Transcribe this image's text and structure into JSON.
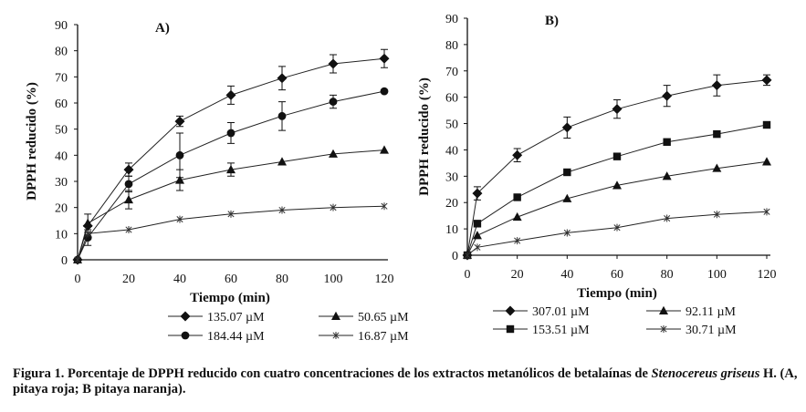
{
  "chart_data": [
    {
      "type": "line",
      "panel_label": "A)",
      "xlabel": "Tiempo (min)",
      "ylabel": "DPPH reducido (%)",
      "xlim": [
        0,
        120
      ],
      "ylim": [
        0,
        90
      ],
      "xticks": [
        "0",
        "20",
        "40",
        "60",
        "80",
        "100",
        "120"
      ],
      "yticks": [
        "0",
        "10",
        "20",
        "30",
        "40",
        "50",
        "60",
        "70",
        "80",
        "90"
      ],
      "series": [
        {
          "name": "135.07 µM",
          "marker": "diamond",
          "x": [
            0,
            4,
            20,
            40,
            60,
            80,
            100,
            120
          ],
          "values": [
            0,
            13,
            34.5,
            53,
            63,
            69.5,
            75,
            77
          ],
          "errors": [
            0,
            0,
            2.5,
            2,
            3.5,
            4.5,
            3.5,
            3.5
          ]
        },
        {
          "name": "184.44 µM",
          "marker": "circle",
          "x": [
            0,
            4,
            20,
            40,
            60,
            80,
            100,
            120
          ],
          "values": [
            0,
            8.5,
            29,
            40,
            48.5,
            55,
            60.5,
            64.5
          ],
          "errors": [
            0,
            3,
            3,
            8.5,
            4,
            5.5,
            2.5,
            0
          ]
        },
        {
          "name": "50.65 µM",
          "marker": "triangle",
          "x": [
            0,
            4,
            20,
            40,
            60,
            80,
            100,
            120
          ],
          "values": [
            0,
            14,
            23,
            30.5,
            34.5,
            37.5,
            40.5,
            42
          ],
          "errors": [
            0,
            3.5,
            3.5,
            4,
            2.5,
            0,
            0,
            0
          ]
        },
        {
          "name": "16.87 µM",
          "marker": "star",
          "x": [
            0,
            4,
            20,
            40,
            60,
            80,
            100,
            120
          ],
          "values": [
            0,
            10,
            11.5,
            15.5,
            17.5,
            19,
            20,
            20.5
          ],
          "errors": [
            0,
            0,
            0,
            0,
            0,
            0,
            0,
            0
          ]
        }
      ],
      "legend_order": [
        "135.07 µM",
        "50.65 µM",
        "184.44 µM",
        "16.87 µM"
      ]
    },
    {
      "type": "line",
      "panel_label": "B)",
      "xlabel": "Tiempo (min)",
      "ylabel": "DPPH reducido (%)",
      "xlim": [
        0,
        120
      ],
      "ylim": [
        0,
        90
      ],
      "xticks": [
        "0",
        "20",
        "40",
        "60",
        "80",
        "100",
        "120"
      ],
      "yticks": [
        "0",
        "10",
        "20",
        "30",
        "40",
        "50",
        "60",
        "70",
        "80",
        "90"
      ],
      "series": [
        {
          "name": "307.01 µM",
          "marker": "diamond",
          "x": [
            0,
            4,
            20,
            40,
            60,
            80,
            100,
            120
          ],
          "values": [
            0,
            23.5,
            38,
            48.5,
            55.5,
            60.5,
            64.5,
            66.5
          ],
          "errors": [
            0,
            2.5,
            2.5,
            4,
            3.5,
            4,
            4,
            2
          ]
        },
        {
          "name": "153.51 µM",
          "marker": "square",
          "x": [
            0,
            4,
            20,
            40,
            60,
            80,
            100,
            120
          ],
          "values": [
            0,
            12,
            22,
            31.5,
            37.5,
            43,
            46,
            49.5
          ],
          "errors": [
            0,
            0,
            0,
            0,
            0,
            0,
            0,
            0
          ]
        },
        {
          "name": "92.11 µM",
          "marker": "triangle",
          "x": [
            0,
            4,
            20,
            40,
            60,
            80,
            100,
            120
          ],
          "values": [
            0,
            7.5,
            14.5,
            21.5,
            26.5,
            30,
            33,
            35.5
          ],
          "errors": [
            0,
            0,
            0,
            0,
            0,
            0,
            0,
            0
          ]
        },
        {
          "name": "30.71 µM",
          "marker": "star",
          "x": [
            0,
            4,
            20,
            40,
            60,
            80,
            100,
            120
          ],
          "values": [
            0,
            3,
            5.5,
            8.5,
            10.5,
            14,
            15.5,
            16.5
          ],
          "errors": [
            0,
            0,
            0,
            0,
            0,
            0,
            0,
            0
          ]
        }
      ],
      "legend_order": [
        "307.01 µM",
        "92.11 µM",
        "153.51 µM",
        "30.71 µM"
      ]
    }
  ],
  "caption": {
    "prefix": "Figura 1.",
    "text": " Porcentaje de DPPH reducido con cuatro concentraciones de los extractos metanólicos de betalaínas de ",
    "species_1": "Stenocereus",
    "species_2": "griseus",
    "suffix": " H. (A, pitaya roja; B pitaya naranja)."
  }
}
